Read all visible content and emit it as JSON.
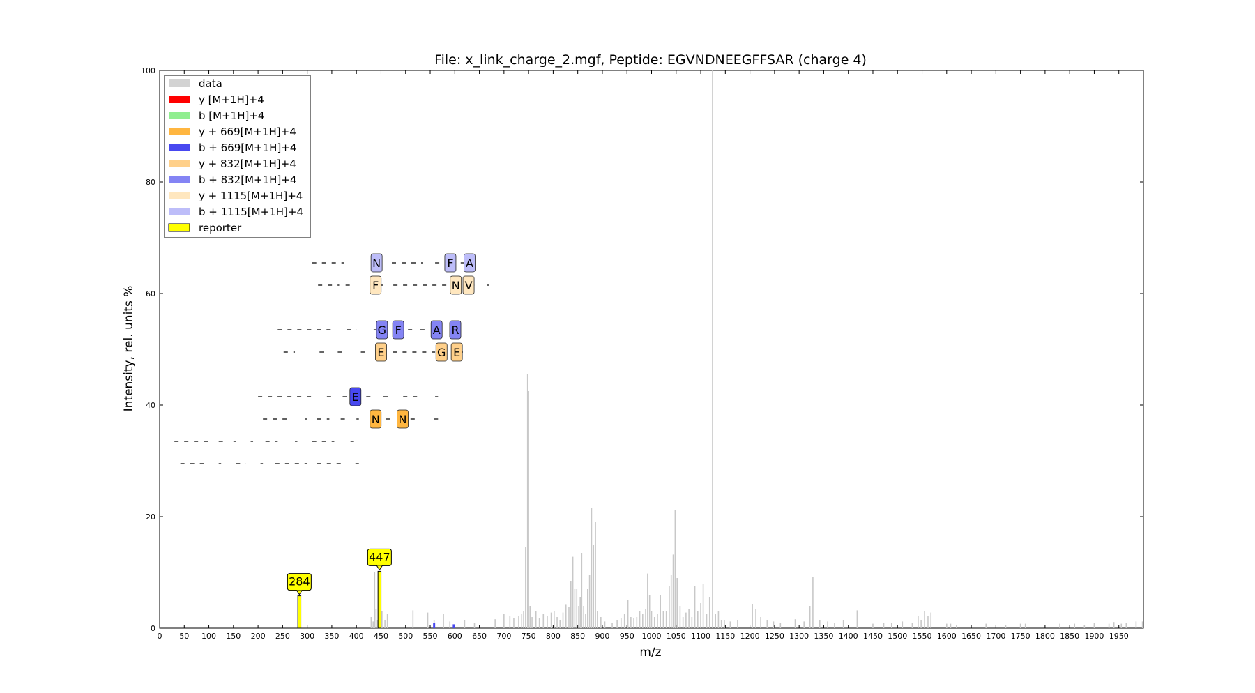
{
  "chart_data": {
    "type": "bar",
    "title": "File: x_link_charge_2.mgf, Peptide: EGVNDNEEGFFSAR (charge 4)",
    "xlabel": "m/z",
    "ylabel": "Intensity, rel. units %",
    "xlim": [
      0,
      2000
    ],
    "ylim": [
      0,
      100
    ],
    "xticks": [
      0,
      50,
      100,
      150,
      200,
      250,
      300,
      350,
      400,
      450,
      500,
      550,
      600,
      650,
      700,
      750,
      800,
      850,
      900,
      950,
      1000,
      1050,
      1100,
      1150,
      1200,
      1250,
      1300,
      1350,
      1400,
      1450,
      1500,
      1550,
      1600,
      1650,
      1700,
      1750,
      1800,
      1850,
      1900,
      1950
    ],
    "yticks": [
      0,
      20,
      40,
      60,
      80,
      100
    ],
    "grid": false,
    "legend_position": "top-left",
    "legend": [
      {
        "label": "data",
        "color": "#d3d3d3",
        "border": "none"
      },
      {
        "label": "y [M+1H]+4",
        "color": "#ff0000",
        "border": "none"
      },
      {
        "label": "b [M+1H]+4",
        "color": "#90ee90",
        "border": "none"
      },
      {
        "label": "y + 669[M+1H]+4",
        "color": "#ffb640",
        "border": "none"
      },
      {
        "label": "b + 669[M+1H]+4",
        "color": "#4848f0",
        "border": "none"
      },
      {
        "label": "y + 832[M+1H]+4",
        "color": "#ffd08a",
        "border": "none"
      },
      {
        "label": "b + 832[M+1H]+4",
        "color": "#8484f4",
        "border": "none"
      },
      {
        "label": "y + 1115[M+1H]+4",
        "color": "#ffe7bf",
        "border": "none"
      },
      {
        "label": "b + 1115[M+1H]+4",
        "color": "#bdbdf9",
        "border": "none"
      },
      {
        "label": "reporter",
        "color": "#ffff00",
        "border": "#000000"
      }
    ],
    "series": [
      {
        "name": "data",
        "color": "#c8c8c8",
        "peaks": [
          [
            284,
            3.5
          ],
          [
            430,
            2.0
          ],
          [
            434,
            1.2
          ],
          [
            437,
            10.0
          ],
          [
            440,
            3.5
          ],
          [
            443,
            1.5
          ],
          [
            447,
            4.0
          ],
          [
            452,
            3.0
          ],
          [
            458,
            1.5
          ],
          [
            463,
            2.5
          ],
          [
            515,
            3.2
          ],
          [
            545,
            2.8
          ],
          [
            558,
            1.5
          ],
          [
            577,
            2.5
          ],
          [
            590,
            1.2
          ],
          [
            620,
            1.5
          ],
          [
            640,
            1.0
          ],
          [
            682,
            1.6
          ],
          [
            700,
            2.5
          ],
          [
            712,
            2.2
          ],
          [
            720,
            1.8
          ],
          [
            730,
            2.2
          ],
          [
            736,
            2.5
          ],
          [
            740,
            3.0
          ],
          [
            744,
            14.5
          ],
          [
            748,
            45.5
          ],
          [
            750,
            42.5
          ],
          [
            753,
            4.0
          ],
          [
            757,
            2.0
          ],
          [
            765,
            3.0
          ],
          [
            772,
            1.8
          ],
          [
            780,
            2.5
          ],
          [
            788,
            2.2
          ],
          [
            796,
            2.8
          ],
          [
            802,
            3.0
          ],
          [
            808,
            2.0
          ],
          [
            814,
            1.5
          ],
          [
            820,
            2.8
          ],
          [
            826,
            4.2
          ],
          [
            832,
            3.8
          ],
          [
            836,
            8.5
          ],
          [
            840,
            12.8
          ],
          [
            844,
            7.0
          ],
          [
            848,
            7.0
          ],
          [
            852,
            4.0
          ],
          [
            855,
            5.5
          ],
          [
            858,
            13.5
          ],
          [
            862,
            4.0
          ],
          [
            866,
            2.5
          ],
          [
            870,
            7.0
          ],
          [
            874,
            9.5
          ],
          [
            878,
            21.5
          ],
          [
            882,
            15.0
          ],
          [
            886,
            19.0
          ],
          [
            890,
            3.0
          ],
          [
            897,
            2.0
          ],
          [
            905,
            1.2
          ],
          [
            920,
            1.0
          ],
          [
            930,
            1.5
          ],
          [
            938,
            1.8
          ],
          [
            945,
            2.5
          ],
          [
            952,
            5.0
          ],
          [
            958,
            2.0
          ],
          [
            964,
            1.8
          ],
          [
            970,
            2.0
          ],
          [
            976,
            3.0
          ],
          [
            982,
            2.5
          ],
          [
            988,
            3.5
          ],
          [
            992,
            9.8
          ],
          [
            996,
            6.0
          ],
          [
            1000,
            3.0
          ],
          [
            1006,
            2.0
          ],
          [
            1012,
            2.5
          ],
          [
            1018,
            6.0
          ],
          [
            1024,
            3.0
          ],
          [
            1030,
            3.0
          ],
          [
            1036,
            7.5
          ],
          [
            1040,
            9.5
          ],
          [
            1044,
            13.2
          ],
          [
            1048,
            21.2
          ],
          [
            1052,
            9.0
          ],
          [
            1058,
            4.0
          ],
          [
            1064,
            2.0
          ],
          [
            1070,
            2.8
          ],
          [
            1076,
            3.5
          ],
          [
            1082,
            2.0
          ],
          [
            1088,
            7.5
          ],
          [
            1094,
            3.0
          ],
          [
            1100,
            4.5
          ],
          [
            1105,
            8.0
          ],
          [
            1112,
            2.5
          ],
          [
            1118,
            5.5
          ],
          [
            1124,
            100
          ],
          [
            1130,
            2.5
          ],
          [
            1136,
            3.0
          ],
          [
            1142,
            1.5
          ],
          [
            1148,
            1.5
          ],
          [
            1160,
            1.2
          ],
          [
            1175,
            1.5
          ],
          [
            1205,
            4.3
          ],
          [
            1212,
            3.5
          ],
          [
            1222,
            2.0
          ],
          [
            1235,
            1.5
          ],
          [
            1248,
            1.2
          ],
          [
            1262,
            1.0
          ],
          [
            1292,
            1.6
          ],
          [
            1310,
            1.2
          ],
          [
            1322,
            4.0
          ],
          [
            1328,
            9.2
          ],
          [
            1342,
            1.5
          ],
          [
            1358,
            1.2
          ],
          [
            1372,
            1.0
          ],
          [
            1390,
            1.5
          ],
          [
            1418,
            3.2
          ],
          [
            1450,
            0.8
          ],
          [
            1472,
            1.0
          ],
          [
            1488,
            1.0
          ],
          [
            1510,
            1.2
          ],
          [
            1530,
            1.0
          ],
          [
            1542,
            2.2
          ],
          [
            1548,
            1.5
          ],
          [
            1555,
            3.0
          ],
          [
            1562,
            2.2
          ],
          [
            1568,
            2.8
          ],
          [
            1600,
            0.8
          ],
          [
            1608,
            0.8
          ],
          [
            1620,
            0.6
          ],
          [
            1680,
            0.8
          ],
          [
            1720,
            0.6
          ],
          [
            1750,
            0.8
          ],
          [
            1760,
            0.8
          ],
          [
            1830,
            0.8
          ],
          [
            1860,
            0.8
          ],
          [
            1880,
            0.6
          ],
          [
            1900,
            1.0
          ],
          [
            1930,
            0.8
          ],
          [
            1940,
            1.1
          ],
          [
            1955,
            0.8
          ],
          [
            1965,
            1.0
          ],
          [
            1985,
            1.2
          ],
          [
            1998,
            1.2
          ]
        ]
      },
      {
        "name": "b + 669[M+1H]+4",
        "color": "#4848f0",
        "peaks": [
          [
            558,
            1.0
          ],
          [
            598,
            0.7
          ]
        ]
      },
      {
        "name": "reporter",
        "color": "#ffff00",
        "peaks": [
          [
            284,
            5.8
          ],
          [
            447,
            10.2
          ]
        ]
      }
    ],
    "reporter_labels": [
      {
        "mz": 284,
        "intensity": 5.8,
        "label": "284"
      },
      {
        "mz": 447,
        "intensity": 10.2,
        "label": "447"
      }
    ],
    "fragment_ladders": [
      {
        "ion_type": "b + 1115[M+1H]+4",
        "y": 65.5,
        "dashes": [
          [
            310,
            375
          ],
          [
            472,
            535
          ],
          [
            560,
            575
          ],
          [
            612,
            620
          ]
        ],
        "boxes": [
          {
            "mz": 441,
            "letter": "N"
          },
          {
            "mz": 591,
            "letter": "F"
          },
          {
            "mz": 630,
            "letter": "A"
          }
        ]
      },
      {
        "ion_type": "y + 1115[M+1H]+4",
        "y": 61.5,
        "dashes": [
          [
            322,
            365
          ],
          [
            378,
            390
          ],
          [
            450,
            455
          ],
          [
            475,
            590
          ],
          [
            632,
            640
          ],
          [
            665,
            670
          ]
        ],
        "boxes": [
          {
            "mz": 439,
            "letter": "F"
          },
          {
            "mz": 602,
            "letter": "N"
          },
          {
            "mz": 628,
            "letter": "V"
          }
        ]
      },
      {
        "ion_type": "b + 832[M+1H]+4",
        "y": 53.5,
        "dashes": [
          [
            240,
            350
          ],
          [
            380,
            400
          ],
          [
            435,
            445
          ],
          [
            485,
            515
          ],
          [
            530,
            545
          ],
          [
            590,
            600
          ]
        ],
        "boxes": [
          {
            "mz": 452,
            "letter": "G"
          },
          {
            "mz": 485,
            "letter": "F"
          },
          {
            "mz": 563,
            "letter": "A"
          },
          {
            "mz": 601,
            "letter": "R"
          }
        ]
      },
      {
        "ion_type": "y + 832[M+1H]+4",
        "y": 49.5,
        "dashes": [
          [
            252,
            275
          ],
          [
            325,
            340
          ],
          [
            362,
            375
          ],
          [
            409,
            418
          ],
          [
            474,
            560
          ],
          [
            608,
            618
          ]
        ],
        "boxes": [
          {
            "mz": 450,
            "letter": "E"
          },
          {
            "mz": 573,
            "letter": "G"
          },
          {
            "mz": 604,
            "letter": "E"
          }
        ]
      },
      {
        "ion_type": "b + 669[M+1H]+4",
        "y": 41.5,
        "dashes": [
          [
            200,
            320
          ],
          [
            340,
            355
          ],
          [
            372,
            380
          ],
          [
            420,
            432
          ],
          [
            455,
            465
          ],
          [
            495,
            525
          ],
          [
            560,
            566
          ]
        ],
        "boxes": [
          {
            "mz": 398,
            "letter": "E"
          }
        ]
      },
      {
        "ion_type": "y + 669[M+1H]+4",
        "y": 37.5,
        "dashes": [
          [
            210,
            260
          ],
          [
            295,
            300
          ],
          [
            320,
            345
          ],
          [
            368,
            380
          ],
          [
            400,
            405
          ],
          [
            460,
            470
          ],
          [
            510,
            530
          ],
          [
            558,
            566
          ]
        ],
        "boxes": [
          {
            "mz": 439,
            "letter": "N"
          },
          {
            "mz": 494,
            "letter": "N"
          }
        ]
      },
      {
        "ion_type": "b [M+1H]+4",
        "y": 33.5,
        "dashes": [
          [
            30,
            100
          ],
          [
            120,
            135
          ],
          [
            150,
            155
          ],
          [
            185,
            190
          ],
          [
            215,
            240
          ],
          [
            275,
            280
          ],
          [
            310,
            355
          ],
          [
            388,
            395
          ]
        ]
      },
      {
        "ion_type": "y [M+1H]+4",
        "y": 29.5,
        "dashes": [
          [
            42,
            90
          ],
          [
            120,
            125
          ],
          [
            155,
            175
          ],
          [
            205,
            210
          ],
          [
            235,
            300
          ],
          [
            320,
            375
          ],
          [
            398,
            405
          ]
        ]
      }
    ]
  }
}
